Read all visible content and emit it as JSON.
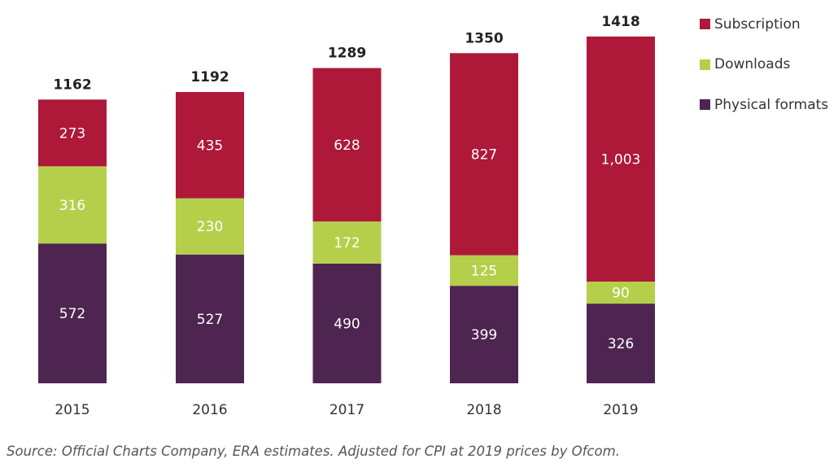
{
  "chart_data": {
    "type": "bar",
    "stacked": true,
    "categories": [
      "2015",
      "2016",
      "2017",
      "2018",
      "2019"
    ],
    "series": [
      {
        "name": "Physical formats",
        "color": "#4E2551",
        "values": [
          572,
          527,
          490,
          399,
          326
        ],
        "labels": [
          "572",
          "527",
          "490",
          "399",
          "326"
        ]
      },
      {
        "name": "Downloads",
        "color": "#B6CF4B",
        "values": [
          316,
          230,
          172,
          125,
          90
        ],
        "labels": [
          "316",
          "230",
          "172",
          "125",
          "90"
        ]
      },
      {
        "name": "Subscription",
        "color": "#AE1839",
        "values": [
          273,
          435,
          628,
          827,
          1003
        ],
        "labels": [
          "273",
          "435",
          "628",
          "827",
          "1,003"
        ]
      }
    ],
    "totals": [
      "1162",
      "1192",
      "1289",
      "1350",
      "1418"
    ],
    "legend": [
      "Subscription",
      "Downloads",
      "Physical formats"
    ],
    "legend_position": "top-right",
    "source": "Source: Official Charts Company, ERA estimates. Adjusted for CPI at 2019 prices by Ofcom.",
    "grid": false,
    "ylim": [
      0,
      1450
    ]
  }
}
